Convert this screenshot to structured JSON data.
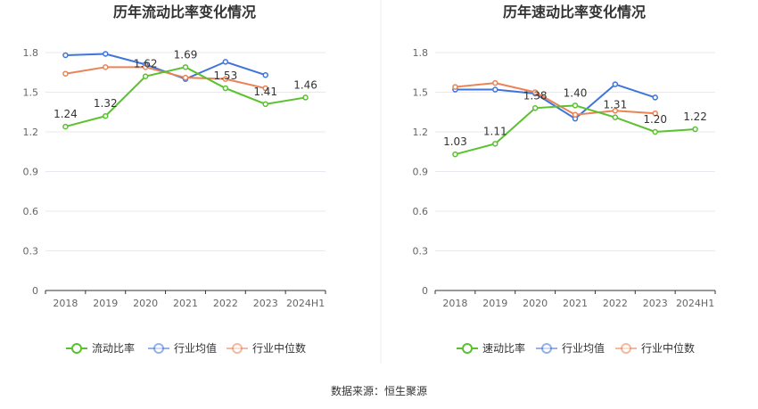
{
  "source_text": "数据来源：恒生聚源",
  "colors": {
    "company": "#5ac22e",
    "industry_avg": "#3f74db",
    "industry_median": "#eb8256",
    "axis": "#333333",
    "grid": "#e6e9ef",
    "tick_text": "#666666",
    "title": "#333333"
  },
  "chart_data": [
    {
      "type": "line",
      "title": "历年流动比率变化情况",
      "categories": [
        "2018",
        "2019",
        "2020",
        "2021",
        "2022",
        "2023",
        "2024H1"
      ],
      "yticks": [
        "0",
        "0.3",
        "0.6",
        "0.9",
        "1.2",
        "1.5",
        "1.8"
      ],
      "ylim": [
        0,
        1.8
      ],
      "grid": true,
      "legend_position": "bottom",
      "series": [
        {
          "name": "流动比率",
          "key": "company",
          "values": [
            1.24,
            1.32,
            1.62,
            1.69,
            1.53,
            1.41,
            1.46
          ],
          "labels": [
            "1.24",
            "1.32",
            "1.62",
            "1.69",
            "1.53",
            "1.41",
            "1.46"
          ]
        },
        {
          "name": "行业均值",
          "key": "industry_avg",
          "values": [
            1.78,
            1.79,
            1.71,
            1.6,
            1.73,
            1.63,
            null
          ]
        },
        {
          "name": "行业中位数",
          "key": "industry_median",
          "values": [
            1.64,
            1.69,
            1.69,
            1.61,
            1.6,
            1.53,
            null
          ]
        }
      ]
    },
    {
      "type": "line",
      "title": "历年速动比率变化情况",
      "categories": [
        "2018",
        "2019",
        "2020",
        "2021",
        "2022",
        "2023",
        "2024H1"
      ],
      "yticks": [
        "0",
        "0.3",
        "0.6",
        "0.9",
        "1.2",
        "1.5",
        "1.8"
      ],
      "ylim": [
        0,
        1.8
      ],
      "grid": true,
      "legend_position": "bottom",
      "series": [
        {
          "name": "速动比率",
          "key": "company",
          "values": [
            1.03,
            1.11,
            1.38,
            1.4,
            1.31,
            1.2,
            1.22
          ],
          "labels": [
            "1.03",
            "1.11",
            "1.38",
            "1.40",
            "1.31",
            "1.20",
            "1.22"
          ]
        },
        {
          "name": "行业均值",
          "key": "industry_avg",
          "values": [
            1.52,
            1.52,
            1.49,
            1.3,
            1.56,
            1.46,
            null
          ]
        },
        {
          "name": "行业中位数",
          "key": "industry_median",
          "values": [
            1.54,
            1.57,
            1.5,
            1.33,
            1.36,
            1.34,
            null
          ]
        }
      ]
    }
  ]
}
